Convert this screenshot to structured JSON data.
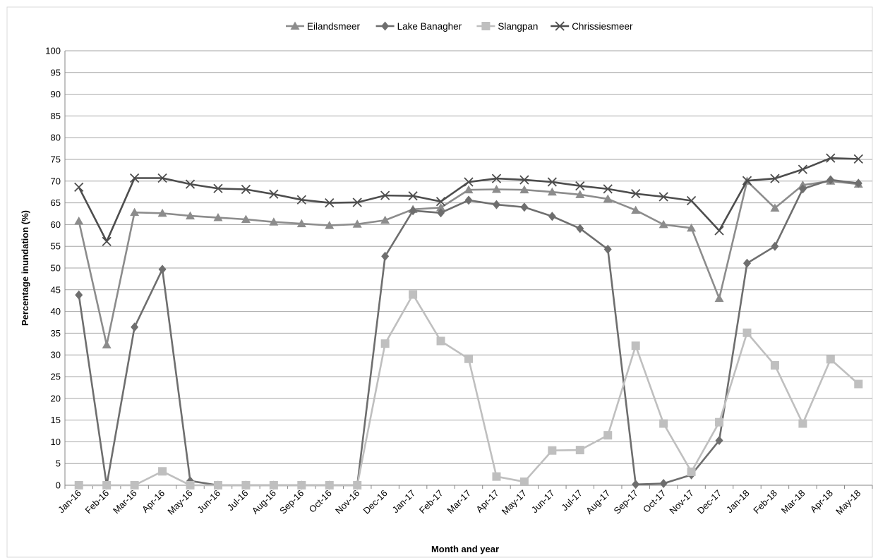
{
  "chart_data": {
    "type": "line",
    "title": "",
    "xlabel": "Month and year",
    "ylabel": "Percentage inundation (%)",
    "ylim": [
      0,
      100
    ],
    "yticks": [
      0,
      5,
      10,
      15,
      20,
      25,
      30,
      35,
      40,
      45,
      50,
      55,
      60,
      65,
      70,
      75,
      80,
      85,
      90,
      95,
      100
    ],
    "grid": true,
    "legend_position": "top",
    "categories": [
      "Jan-16",
      "Feb-16",
      "Mar-16",
      "Apr-16",
      "May-16",
      "Jun-16",
      "Jul-16",
      "Aug-16",
      "Sep-16",
      "Oct-16",
      "Nov-16",
      "Dec-16",
      "Jan-17",
      "Feb-17",
      "Mar-17",
      "Apr-17",
      "May-17",
      "Jun-17",
      "Jul-17",
      "Aug-17",
      "Sep-17",
      "Oct-17",
      "Nov-17",
      "Dec-17",
      "Jan-18",
      "Feb-18",
      "Mar-18",
      "Apr-18",
      "May-18"
    ],
    "series": [
      {
        "name": "Eilandsmeer",
        "color": "#8c8c8c",
        "marker": "triangle",
        "values": [
          60.8,
          32.3,
          62.8,
          62.6,
          62.0,
          61.6,
          61.2,
          60.6,
          60.2,
          59.8,
          60.1,
          61.0,
          63.5,
          63.9,
          68.0,
          68.1,
          68.0,
          67.5,
          66.9,
          65.9,
          63.3,
          60.0,
          59.2,
          43.0,
          70.0,
          63.8,
          69.1,
          70.0,
          69.3
        ]
      },
      {
        "name": "Lake Banagher",
        "color": "#6e6e6e",
        "marker": "diamond",
        "values": [
          43.8,
          0.0,
          36.4,
          49.7,
          1.0,
          0.0,
          0.0,
          0.0,
          0.0,
          0.0,
          0.0,
          52.7,
          63.2,
          62.7,
          65.6,
          64.6,
          64.0,
          61.9,
          59.1,
          54.3,
          0.2,
          0.4,
          2.4,
          10.3,
          51.1,
          55.0,
          68.2,
          70.3,
          69.5
        ]
      },
      {
        "name": "Slangpan",
        "color": "#bfbfbf",
        "marker": "square",
        "values": [
          0.0,
          0.0,
          0.0,
          3.2,
          0.0,
          0.0,
          0.0,
          0.0,
          0.0,
          0.0,
          0.0,
          32.6,
          43.9,
          33.2,
          29.1,
          2.0,
          0.8,
          8.0,
          8.1,
          11.5,
          32.1,
          14.2,
          3.1,
          14.5,
          35.1,
          27.6,
          14.2,
          29.0,
          23.3
        ]
      },
      {
        "name": "Chrissiesmeer",
        "color": "#4d4d4d",
        "marker": "cross",
        "values": [
          68.6,
          56.1,
          70.7,
          70.7,
          69.3,
          68.3,
          68.1,
          67.0,
          65.7,
          65.0,
          65.1,
          66.7,
          66.6,
          65.3,
          69.8,
          70.6,
          70.3,
          69.8,
          68.9,
          68.2,
          67.1,
          66.4,
          65.5,
          58.6,
          70.1,
          70.6,
          72.7,
          75.3,
          75.1
        ]
      }
    ]
  }
}
